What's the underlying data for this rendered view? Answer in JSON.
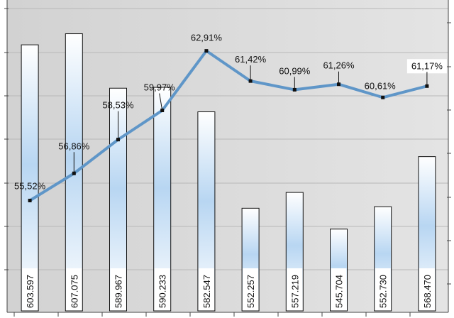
{
  "chart_data": {
    "type": "bar",
    "bar_series": {
      "values": [
        603597,
        607075,
        589967,
        590233,
        582547,
        552257,
        557219,
        545704,
        552730,
        568470
      ],
      "labels": [
        "603.597",
        "607.075",
        "589.967",
        "590.233",
        "582.547",
        "552.257",
        "557.219",
        "545.704",
        "552.730",
        "568.470"
      ],
      "color": "#b8d6f2",
      "ylim": [
        520000,
        615000
      ]
    },
    "line_series": {
      "type": "line",
      "values": [
        55.52,
        56.86,
        58.53,
        59.97,
        62.91,
        61.42,
        60.99,
        61.26,
        60.61,
        61.17
      ],
      "labels": [
        "55,52%",
        "56,86%",
        "58,53%",
        "59,97%",
        "62,91%",
        "61,42%",
        "60,99%",
        "61,26%",
        "60,61%",
        "61,17%"
      ],
      "color": "#5f96c8",
      "ylim": [
        50,
        65
      ]
    },
    "grid": true,
    "plot_background": "#d6d6d6"
  }
}
